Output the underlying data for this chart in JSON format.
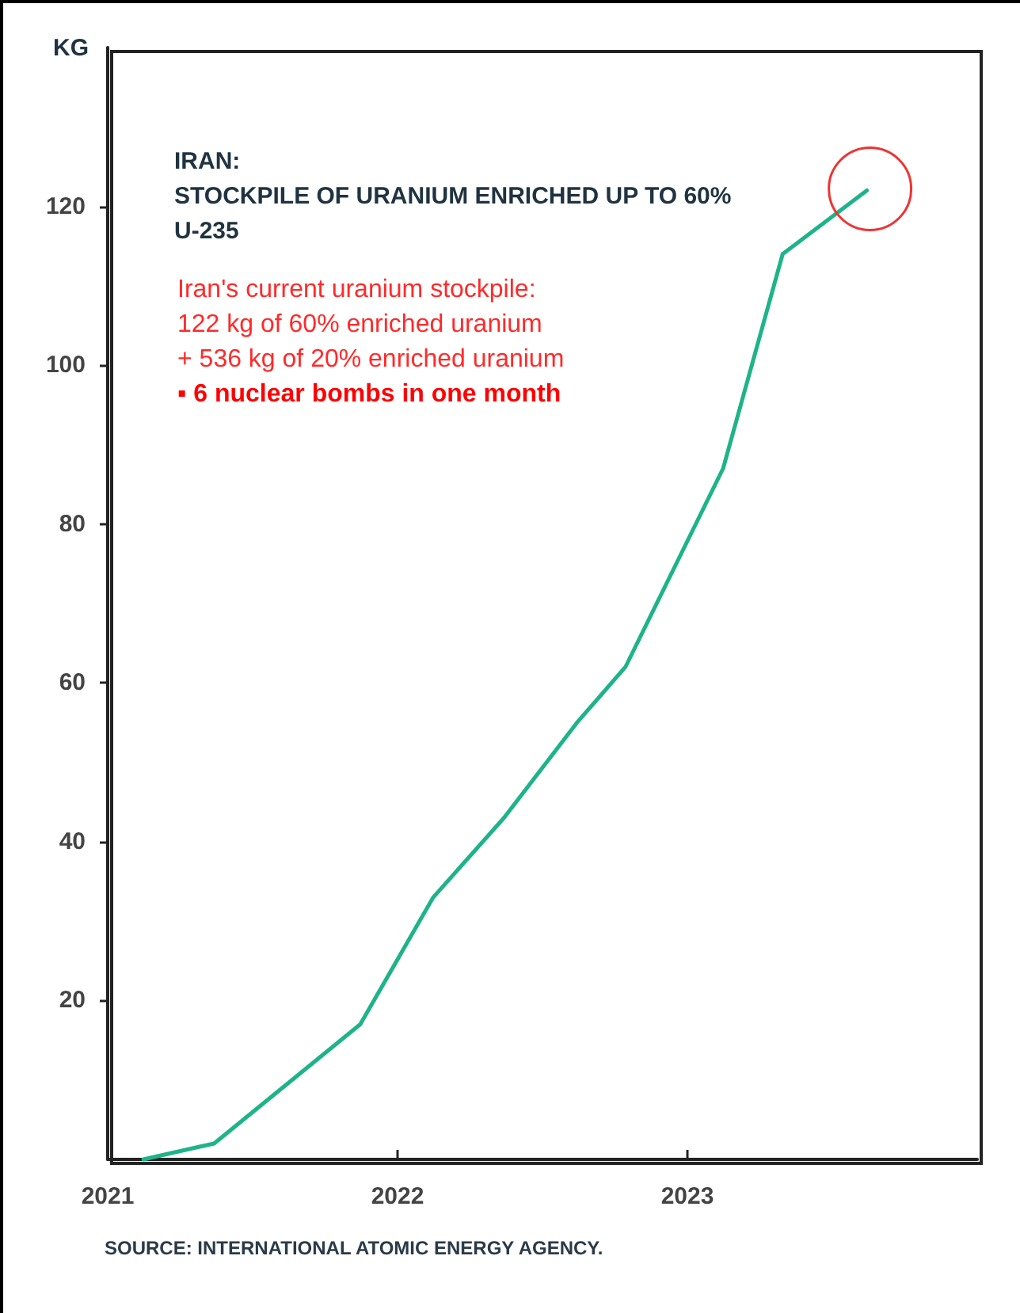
{
  "chart_data": {
    "type": "line",
    "title": "IRAN:\nSTOCKPILE OF URANIUM ENRICHED UP TO 60%\nU-235",
    "ylabel": "KG",
    "x": [
      "2021-02-15",
      "2021-05-15",
      "2021-11-15",
      "2022-02-15",
      "2022-05-15",
      "2022-08-15",
      "2022-10-15",
      "2023-02-15",
      "2023-05-01",
      "2023-08-15"
    ],
    "series": [
      {
        "color": "#1fb38a",
        "values": [
          0,
          2,
          17,
          33,
          43,
          55,
          62,
          87,
          114,
          122
        ]
      }
    ],
    "xlim": [
      "2021-01-01",
      "2024-01-01"
    ],
    "xticks": [
      "2021",
      "2022",
      "2023"
    ],
    "ylim": [
      0,
      140
    ],
    "yticks": [
      20,
      40,
      60,
      80,
      100,
      120
    ],
    "grid": false,
    "marker": "none",
    "line_style": "solid",
    "annotations": [
      "Iran's current uranium stockpile:\n122 kg of 60% enriched uranium\n+ 536 kg of 20% enriched uranium",
      "▪ 6 nuclear bombs in one month",
      "SOURCE: INTERNATIONAL ATOMIC ENERGY AGENCY."
    ]
  }
}
